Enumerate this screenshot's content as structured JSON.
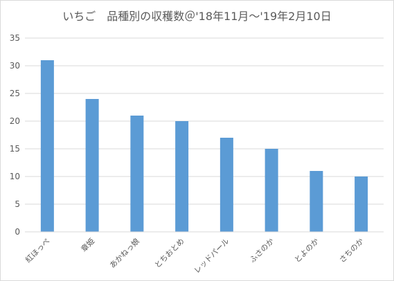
{
  "chart_data": {
    "type": "bar",
    "title": "いちご　品種別の収穫数＠'18年11月～'19年2月10日",
    "xlabel": "",
    "ylabel": "",
    "categories": [
      "紅ほっぺ",
      "章姫",
      "あかねっ娘",
      "とちおとめ",
      "レッドパール",
      "ふさのか",
      "とよのか",
      "さちのか"
    ],
    "series": [
      {
        "values": [
          31,
          24,
          21,
          20,
          17,
          15,
          11,
          10
        ]
      }
    ],
    "ylim": [
      0,
      35
    ],
    "yticks": [
      0,
      5,
      10,
      15,
      20,
      25,
      30,
      35
    ],
    "grid": true,
    "legend": "none",
    "bar_color": "#5b9bd5",
    "grid_color": "#d9d9d9",
    "text_color": "#595959"
  }
}
